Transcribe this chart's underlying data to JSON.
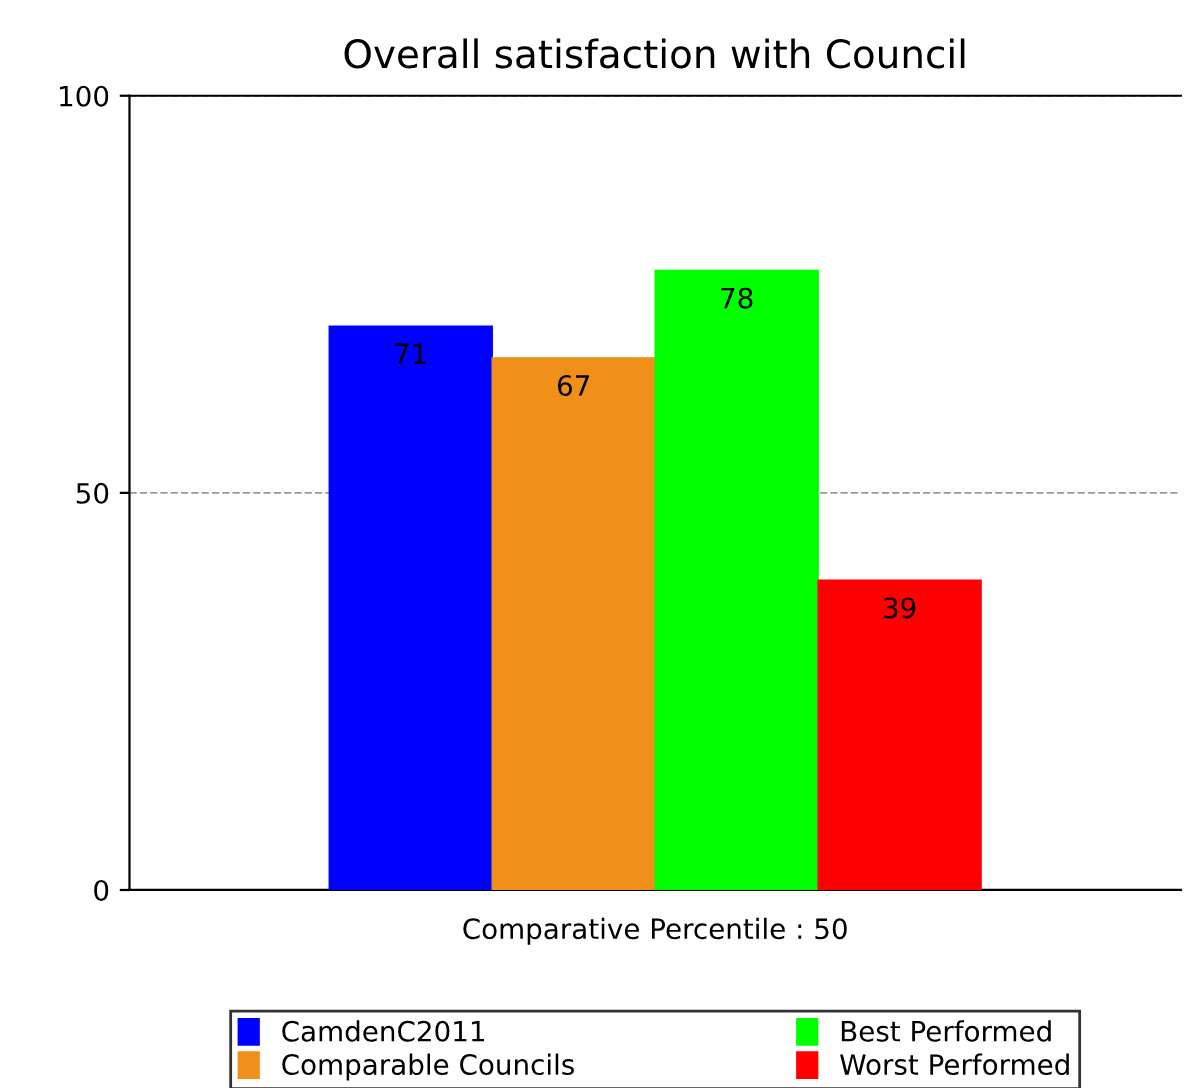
{
  "chart_data": {
    "type": "bar",
    "title": "Overall satisfaction with Council",
    "categories": [
      "Comparative Percentile : 50"
    ],
    "series": [
      {
        "name": "CamdenC2011",
        "color": "#0000ff",
        "values": [
          71
        ]
      },
      {
        "name": "Comparable Councils",
        "color": "#f0901a",
        "values": [
          67
        ]
      },
      {
        "name": "Best Performed",
        "color": "#00ff00",
        "values": [
          78
        ]
      },
      {
        "name": "Worst Performed",
        "color": "#ff0000",
        "values": [
          39
        ]
      }
    ],
    "ylim": [
      0,
      100
    ],
    "yticks": [
      0,
      50,
      100
    ],
    "grid": "y",
    "legend": "bottom",
    "data_labels": true
  }
}
